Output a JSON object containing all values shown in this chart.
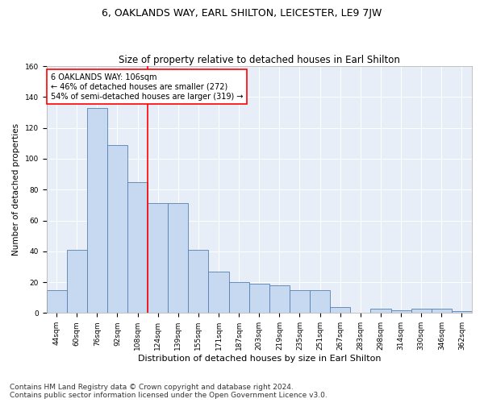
{
  "title1": "6, OAKLANDS WAY, EARL SHILTON, LEICESTER, LE9 7JW",
  "title2": "Size of property relative to detached houses in Earl Shilton",
  "xlabel": "Distribution of detached houses by size in Earl Shilton",
  "ylabel": "Number of detached properties",
  "categories": [
    "44sqm",
    "60sqm",
    "76sqm",
    "92sqm",
    "108sqm",
    "124sqm",
    "139sqm",
    "155sqm",
    "171sqm",
    "187sqm",
    "203sqm",
    "219sqm",
    "235sqm",
    "251sqm",
    "267sqm",
    "283sqm",
    "298sqm",
    "314sqm",
    "330sqm",
    "346sqm",
    "362sqm"
  ],
  "values": [
    15,
    41,
    133,
    109,
    85,
    71,
    71,
    41,
    27,
    20,
    19,
    18,
    15,
    15,
    4,
    0,
    3,
    2,
    3,
    3,
    1
  ],
  "bar_color": "#c6d9f0",
  "bar_edge_color": "#5580b0",
  "red_line_index": 4.5,
  "annotation_text": "6 OAKLANDS WAY: 106sqm\n← 46% of detached houses are smaller (272)\n54% of semi-detached houses are larger (319) →",
  "annotation_box_color": "white",
  "annotation_box_edge": "red",
  "ylim": [
    0,
    155
  ],
  "yticks": [
    0,
    20,
    40,
    60,
    80,
    100,
    120,
    140,
    160
  ],
  "background_color": "#e8eef7",
  "footnote": "Contains HM Land Registry data © Crown copyright and database right 2024.\nContains public sector information licensed under the Open Government Licence v3.0.",
  "title1_fontsize": 9,
  "title2_fontsize": 8.5,
  "xlabel_fontsize": 8,
  "ylabel_fontsize": 7.5,
  "tick_fontsize": 6.5,
  "footnote_fontsize": 6.5
}
